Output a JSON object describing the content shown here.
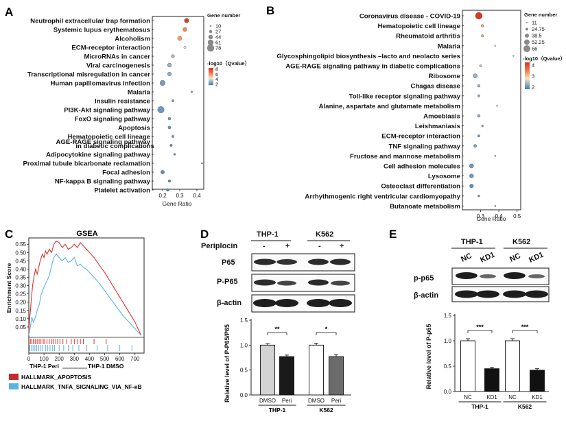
{
  "panels": {
    "A": {
      "label": "A",
      "chart_data": {
        "type": "scatter",
        "xlabel": "Gene Ratio",
        "xticks": [
          "0.2",
          "0.3",
          "0.4"
        ],
        "xlim": [
          0.14,
          0.44
        ],
        "size_legend_title": "Gene number",
        "size_legend": [
          "10",
          "27",
          "44",
          "61",
          "78"
        ],
        "size_range": [
          10,
          78
        ],
        "color_legend_title": "-log10（Qvalue）",
        "color_legend_ticks": [
          "8",
          "6",
          "4",
          "2"
        ],
        "color_range": [
          1,
          9
        ],
        "terms": [
          {
            "name": "Neutrophil extracellular trap formation",
            "ratio": 0.34,
            "genes": 45,
            "q": 8.6
          },
          {
            "name": "Systemic lupus erythematosus",
            "ratio": 0.33,
            "genes": 40,
            "q": 6.2
          },
          {
            "name": "Alcoholism",
            "ratio": 0.3,
            "genes": 42,
            "q": 5.8
          },
          {
            "name": "ECM-receptor interaction",
            "ratio": 0.33,
            "genes": 18,
            "q": 4.0
          },
          {
            "name": "MicroRNAs in cancer",
            "ratio": 0.26,
            "genes": 28,
            "q": 2.8
          },
          {
            "name": "Viral carcinogenesis",
            "ratio": 0.24,
            "genes": 40,
            "q": 2.6
          },
          {
            "name": "Transcriptional misregulation in cancer",
            "ratio": 0.24,
            "genes": 38,
            "q": 2.5
          },
          {
            "name": "Human papillomavirus infection",
            "ratio": 0.2,
            "genes": 55,
            "q": 2.0
          },
          {
            "name": "Malaria",
            "ratio": 0.37,
            "genes": 10,
            "q": 2.0
          },
          {
            "name": "Insulin resistance",
            "ratio": 0.26,
            "genes": 18,
            "q": 1.9
          },
          {
            "name": "PI3K-Akt signaling pathway",
            "ratio": 0.19,
            "genes": 70,
            "q": 1.8
          },
          {
            "name": "FoxO signaling pathway",
            "ratio": 0.24,
            "genes": 22,
            "q": 1.8
          },
          {
            "name": "Apoptosis",
            "ratio": 0.24,
            "genes": 24,
            "q": 1.7
          },
          {
            "name": "Hematopoietic cell lineage",
            "ratio": 0.26,
            "genes": 17,
            "q": 1.6
          },
          {
            "name": "AGE-RAGE signaling pathway in diabetic complications",
            "ratio": 0.25,
            "genes": 18,
            "q": 1.6
          },
          {
            "name": "Adipocytokine signaling pathway",
            "ratio": 0.27,
            "genes": 13,
            "q": 1.5
          },
          {
            "name": "Proximal tubule bicarbonate reclamation",
            "ratio": 0.43,
            "genes": 6,
            "q": 1.4
          },
          {
            "name": "Focal adhesion",
            "ratio": 0.2,
            "genes": 34,
            "q": 1.4
          },
          {
            "name": "NF-kappa B signaling pathway",
            "ratio": 0.24,
            "genes": 20,
            "q": 1.3
          },
          {
            "name": "Platelet activation",
            "ratio": 0.23,
            "genes": 22,
            "q": 1.3
          }
        ]
      }
    },
    "B": {
      "label": "B",
      "chart_data": {
        "type": "scatter",
        "xlabel": "Gene Ratio",
        "xticks": [
          "0.3",
          "0.4",
          "0.5"
        ],
        "xlim": [
          0.2,
          0.52
        ],
        "size_legend_title": "Gene number",
        "size_legend": [
          "11",
          "24.75",
          "38.5",
          "52.25",
          "66"
        ],
        "size_range": [
          11,
          66
        ],
        "color_legend_title": "-log10（Qvalue）",
        "color_legend_ticks": [
          "4",
          "3",
          "2"
        ],
        "color_range": [
          1.5,
          4.5
        ],
        "terms": [
          {
            "name": "Coronavirus disease - COVID-19",
            "ratio": 0.29,
            "genes": 66,
            "q": 4.4
          },
          {
            "name": "Hematopoietic cell lineage",
            "ratio": 0.31,
            "genes": 24,
            "q": 3.3
          },
          {
            "name": "Rheumatoid arthritis",
            "ratio": 0.31,
            "genes": 22,
            "q": 3.2
          },
          {
            "name": "Malaria",
            "ratio": 0.38,
            "genes": 12,
            "q": 2.6
          },
          {
            "name": "Glycosphingolipid biosynthesis –lacto and neolacto series",
            "ratio": 0.48,
            "genes": 11,
            "q": 2.4
          },
          {
            "name": "AGE-RAGE signaling pathway in diabetic complications",
            "ratio": 0.3,
            "genes": 22,
            "q": 2.3
          },
          {
            "name": "Ribosome",
            "ratio": 0.27,
            "genes": 40,
            "q": 2.1
          },
          {
            "name": "Chagas disease",
            "ratio": 0.29,
            "genes": 24,
            "q": 2.1
          },
          {
            "name": "Toll-like receptor signaling pathway",
            "ratio": 0.29,
            "genes": 22,
            "q": 2.0
          },
          {
            "name": "Alanine, aspartate and glutamate metabolism",
            "ratio": 0.39,
            "genes": 11,
            "q": 2.0
          },
          {
            "name": "Amoebiasis",
            "ratio": 0.29,
            "genes": 25,
            "q": 2.0
          },
          {
            "name": "Leishmaniasis",
            "ratio": 0.31,
            "genes": 18,
            "q": 1.9
          },
          {
            "name": "ECM-receptor interaction",
            "ratio": 0.29,
            "genes": 22,
            "q": 1.9
          },
          {
            "name": "TNF signaling pathway",
            "ratio": 0.27,
            "genes": 28,
            "q": 1.9
          },
          {
            "name": "Fructose and mannose metabolism",
            "ratio": 0.38,
            "genes": 12,
            "q": 1.8
          },
          {
            "name": "Cell adhesion molecules",
            "ratio": 0.25,
            "genes": 40,
            "q": 1.8
          },
          {
            "name": "Lysosome",
            "ratio": 0.25,
            "genes": 38,
            "q": 1.8
          },
          {
            "name": "Osteoclast differentiation",
            "ratio": 0.25,
            "genes": 36,
            "q": 1.7
          },
          {
            "name": "Arrhythmogenic right ventricular cardiomyopathy",
            "ratio": 0.29,
            "genes": 18,
            "q": 1.7
          },
          {
            "name": "Butanoate metabolism",
            "ratio": 0.38,
            "genes": 12,
            "q": 1.6
          }
        ]
      }
    },
    "C": {
      "label": "C",
      "title": "GSEA",
      "chart_data": {
        "type": "line",
        "ylabel": "Enrichment Score",
        "yticks": [
          "0.55",
          "0.50",
          "0.45",
          "0.40",
          "0.35",
          "0.30",
          "0.25",
          "0.20",
          "0.15",
          "0.10",
          "0.05"
        ],
        "xticks": [
          "0",
          "100",
          "200",
          "300",
          "400",
          "500",
          "600",
          "700"
        ],
        "xlim": [
          0,
          760
        ],
        "ylim": [
          0,
          0.58
        ],
        "xlabel_left": "THP-1 Peri",
        "xlabel_right": "THP-1 DMSO",
        "series": [
          {
            "name": "HALLMARK_APOPTOSIS",
            "color": "#d9342b",
            "x": [
              0,
              5,
              10,
              15,
              25,
              35,
              45,
              55,
              65,
              75,
              90,
              100,
              110,
              120,
              135,
              150,
              165,
              180,
              200,
              220,
              240,
              260,
              280,
              300,
              320,
              340,
              360,
              380,
              400,
              430,
              460,
              500,
              540,
              580,
              620,
              660,
              700,
              740
            ],
            "y": [
              0.02,
              0.1,
              0.14,
              0.2,
              0.3,
              0.36,
              0.4,
              0.37,
              0.41,
              0.45,
              0.49,
              0.47,
              0.51,
              0.49,
              0.52,
              0.5,
              0.55,
              0.57,
              0.56,
              0.53,
              0.55,
              0.52,
              0.53,
              0.55,
              0.53,
              0.56,
              0.54,
              0.52,
              0.5,
              0.47,
              0.43,
              0.38,
              0.32,
              0.26,
              0.2,
              0.14,
              0.08,
              0.0
            ]
          },
          {
            "name": "HALLMARK_TNFA_SIGNALING_VIA_NF-κB",
            "color": "#5ab4e0",
            "x": [
              0,
              10,
              20,
              30,
              40,
              55,
              70,
              80,
              95,
              110,
              120,
              135,
              150,
              165,
              180,
              200,
              220,
              240,
              260,
              280,
              300,
              320,
              340,
              360,
              380,
              400,
              430,
              460,
              500,
              540,
              580,
              620,
              660,
              700,
              740
            ],
            "y": [
              0.0,
              0.05,
              0.11,
              0.08,
              0.1,
              0.15,
              0.19,
              0.24,
              0.28,
              0.31,
              0.33,
              0.36,
              0.42,
              0.47,
              0.49,
              0.47,
              0.45,
              0.47,
              0.44,
              0.45,
              0.47,
              0.42,
              0.43,
              0.41,
              0.4,
              0.38,
              0.35,
              0.32,
              0.27,
              0.22,
              0.17,
              0.12,
              0.08,
              0.04,
              0.0
            ]
          }
        ],
        "rug": {
          "HALLMARK_APOPTOSIS": [
            10,
            20,
            30,
            42,
            55,
            68,
            80,
            95,
            105,
            120,
            135,
            150,
            160,
            178,
            190,
            205,
            225,
            250,
            280,
            300,
            320,
            340,
            360,
            430,
            510
          ],
          "HALLMARK_TNFA_SIGNALING_VIA_NF-κB": [
            5,
            18,
            28,
            40,
            52,
            65,
            75,
            90,
            110,
            125,
            140,
            155,
            170,
            200,
            230,
            260,
            290,
            330,
            380,
            450,
            520,
            600,
            680
          ]
        }
      }
    },
    "D": {
      "label": "D",
      "groups": [
        "THP-1",
        "K562"
      ],
      "treatment_label": "Periplocin",
      "signs": [
        "-",
        "+",
        "-",
        "+"
      ],
      "bands": [
        "P65",
        "P-P65",
        "β-actin"
      ],
      "chart_data": {
        "type": "bar",
        "categories": [
          "DMSO",
          "Peri",
          "DMSO",
          "Peri"
        ],
        "group_labels": [
          "THP-1",
          "K562"
        ],
        "values": [
          1.0,
          0.77,
          1.0,
          0.77
        ],
        "errors": [
          0.03,
          0.03,
          0.04,
          0.04
        ],
        "colors": [
          "#d3d3d3",
          "#1a1a1a",
          "#ffffff",
          "#6b6b6b"
        ],
        "ylabel": "Relative level of P-P65/P65",
        "yticks": [
          "0.0",
          "0.5",
          "1.0",
          "1.5"
        ],
        "ylim": [
          0,
          1.5
        ],
        "significance": [
          "**",
          "*"
        ]
      }
    },
    "E": {
      "label": "E",
      "groups": [
        "THP-1",
        "K562"
      ],
      "lanes": [
        "NC",
        "KD1",
        "NC",
        "KD1"
      ],
      "bands": [
        "p-p65",
        "β-actin"
      ],
      "chart_data": {
        "type": "bar",
        "categories": [
          "NC",
          "KD1",
          "NC",
          "KD1"
        ],
        "group_labels": [
          "THP-1",
          "K562"
        ],
        "values": [
          1.0,
          0.45,
          1.0,
          0.42
        ],
        "errors": [
          0.04,
          0.03,
          0.04,
          0.03
        ],
        "colors": [
          "#ffffff",
          "#111111",
          "#ffffff",
          "#111111"
        ],
        "ylabel": "Relative level of P-p65",
        "yticks": [
          "0.0",
          "0.5",
          "1.0",
          "1.5"
        ],
        "ylim": [
          0,
          1.5
        ],
        "significance": [
          "***",
          "***"
        ]
      }
    }
  }
}
